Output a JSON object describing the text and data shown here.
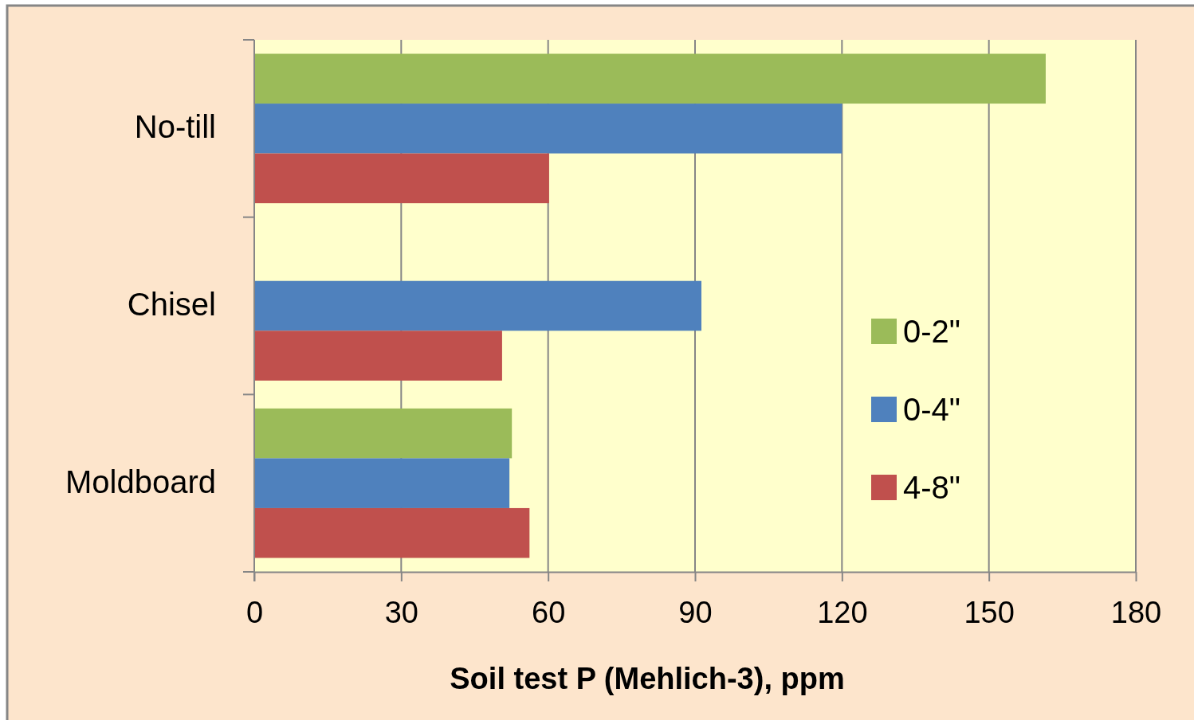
{
  "chart_data": {
    "type": "bar",
    "orientation": "horizontal",
    "xlabel": "Soil test P (Mehlich-3), ppm",
    "categories": [
      "No-till",
      "Chisel",
      "Moldboard"
    ],
    "series": [
      {
        "name": "0-2\"",
        "color": "#9bbb59",
        "values": [
          161.6,
          null,
          52.6
        ]
      },
      {
        "name": "0-4\"",
        "color": "#4f81bd",
        "values": [
          120,
          91.3,
          52.1
        ]
      },
      {
        "name": "4-8\"",
        "color": "#c0504d",
        "values": [
          60.2,
          50.6,
          56.2
        ]
      }
    ],
    "xlim": [
      0,
      180
    ],
    "xticks": [
      0,
      30,
      60,
      90,
      120,
      150,
      180
    ],
    "grid": "x",
    "legend": "right"
  }
}
